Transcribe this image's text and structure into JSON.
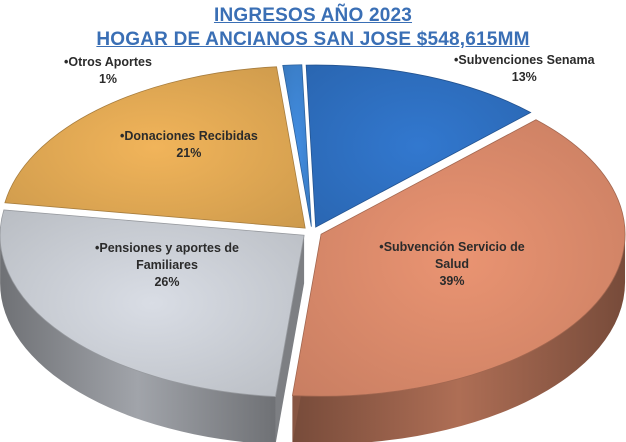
{
  "title_line1": "INGRESOS AÑO 2023",
  "title_line2": "HOGAR DE ANCIANOS SAN JOSE $548,615MM",
  "chart_data": {
    "type": "pie",
    "title": "INGRESOS AÑO 2023 HOGAR DE ANCIANOS SAN JOSE $548,615MM",
    "exploded": true,
    "three_d": true,
    "slices": [
      {
        "key": "senama",
        "label": "Subvenciones Senama",
        "value": 13,
        "pct_text": "13%",
        "color": "#2e6fc0"
      },
      {
        "key": "salud",
        "label": "Subvención Servicio de Salud",
        "value": 39,
        "pct_text": "39%",
        "color": "#d9896a"
      },
      {
        "key": "familia",
        "label": "Pensiones y aportes de Familiares",
        "value": 26,
        "pct_text": "26%",
        "color": "#c9cdd4"
      },
      {
        "key": "donacion",
        "label": "Donaciones Recibidas",
        "value": 21,
        "pct_text": "21%",
        "color": "#dfa753"
      },
      {
        "key": "otros",
        "label": "Otros Aportes",
        "value": 1,
        "pct_text": "1%",
        "color": "#3d83d0"
      }
    ]
  }
}
